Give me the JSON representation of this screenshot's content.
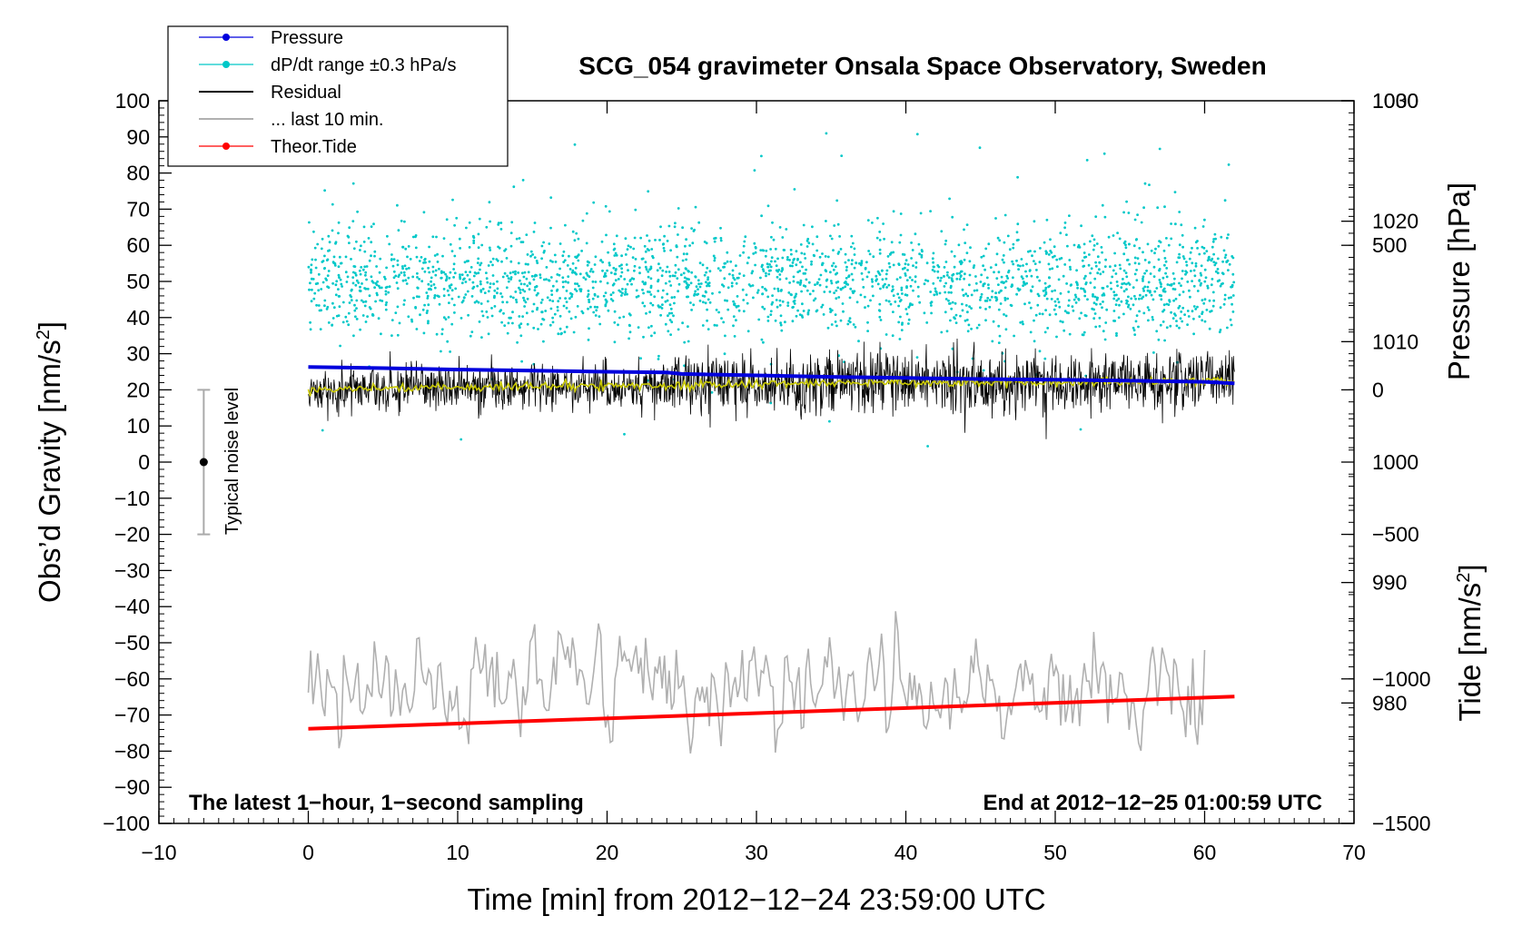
{
  "chart_data": {
    "type": "line",
    "title": "SCG_054 gravimeter Onsala Space Observatory, Sweden",
    "xlabel": "Time [min] from 2012−12−24 23:59:00 UTC",
    "ylabel_left": "Obs’d Gravity [nm/s",
    "ylabel_left_sup": "2",
    "ylabel_left_end": "]",
    "ylabel_right_pressure": "Pressure [hPa]",
    "ylabel_right_tide": "Tide [nm/s",
    "ylabel_right_tide_sup": "2",
    "ylabel_right_tide_end": "]",
    "xlim": [
      -10,
      70
    ],
    "ylim_left": [
      -100,
      100
    ],
    "pressure_ylim": [
      970,
      1030
    ],
    "tide_ylim": [
      -1500,
      1000
    ],
    "x_ticks": [
      {
        "v": -10,
        "label": "−10"
      },
      {
        "v": 0,
        "label": "0"
      },
      {
        "v": 10,
        "label": "10"
      },
      {
        "v": 20,
        "label": "20"
      },
      {
        "v": 30,
        "label": "30"
      },
      {
        "v": 40,
        "label": "40"
      },
      {
        "v": 50,
        "label": "50"
      },
      {
        "v": 60,
        "label": "60"
      },
      {
        "v": 70,
        "label": "70"
      }
    ],
    "y_ticks_left": [
      {
        "v": 100,
        "label": "100"
      },
      {
        "v": 90,
        "label": "90"
      },
      {
        "v": 80,
        "label": "80"
      },
      {
        "v": 70,
        "label": "70"
      },
      {
        "v": 60,
        "label": "60"
      },
      {
        "v": 50,
        "label": "50"
      },
      {
        "v": 40,
        "label": "40"
      },
      {
        "v": 30,
        "label": "30"
      },
      {
        "v": 20,
        "label": "20"
      },
      {
        "v": 10,
        "label": "10"
      },
      {
        "v": 0,
        "label": "0"
      },
      {
        "v": -10,
        "label": "−10"
      },
      {
        "v": -20,
        "label": "−20"
      },
      {
        "v": -30,
        "label": "−30"
      },
      {
        "v": -40,
        "label": "−40"
      },
      {
        "v": -50,
        "label": "−50"
      },
      {
        "v": -60,
        "label": "−60"
      },
      {
        "v": -70,
        "label": "−70"
      },
      {
        "v": -80,
        "label": "−80"
      },
      {
        "v": -90,
        "label": "−90"
      },
      {
        "v": -100,
        "label": "−100"
      }
    ],
    "pressure_ticks": [
      {
        "v": 1030,
        "label": "1030"
      },
      {
        "v": 1020,
        "label": "1020"
      },
      {
        "v": 1010,
        "label": "1010"
      },
      {
        "v": 1000,
        "label": "1000"
      },
      {
        "v": 990,
        "label": "990"
      },
      {
        "v": 980,
        "label": "980"
      }
    ],
    "tide_ticks": [
      {
        "v": 1000,
        "label": "1000"
      },
      {
        "v": 500,
        "label": "500"
      },
      {
        "v": 0,
        "label": "0"
      },
      {
        "v": -500,
        "label": "−500"
      },
      {
        "v": -1000,
        "label": "−1000"
      },
      {
        "v": -1500,
        "label": "−1500"
      }
    ],
    "legend": [
      {
        "label": "Pressure",
        "color": "#0000dd",
        "marker": true
      },
      {
        "label": "dP/dt range ±0.3 hPa/s",
        "color": "#00c8c8",
        "marker": true
      },
      {
        "label": "Residual",
        "color": "#000000",
        "marker": false
      },
      {
        "label": "... last 10 min.",
        "color": "#b0b0b0",
        "marker": false
      },
      {
        "label": "Theor.Tide",
        "color": "#ff0000",
        "marker": true
      }
    ],
    "annotations": {
      "left": "The latest 1−hour, 1−second sampling",
      "right": "End at 2012−12−25 01:00:59 UTC"
    },
    "noise_bar": {
      "label": "Typical noise level",
      "x": -7,
      "center": 0,
      "low": -20,
      "high": 20
    },
    "series": [
      {
        "name": "Pressure",
        "color": "#0000dd",
        "axis": "left",
        "x": [
          0,
          5,
          10,
          15,
          20,
          24,
          25,
          30,
          35,
          40,
          45,
          50,
          55,
          60,
          62
        ],
        "values": [
          26.3,
          26.0,
          25.6,
          25.3,
          25.0,
          24.8,
          24.4,
          24.0,
          23.6,
          23.3,
          23.0,
          22.8,
          22.5,
          22.2,
          21.8
        ]
      },
      {
        "name": "Residual (smoothed)",
        "color": "#c8c800",
        "axis": "left",
        "x": [
          0,
          5,
          10,
          15,
          20,
          25,
          30,
          35,
          40,
          45,
          50,
          55,
          60,
          62
        ],
        "values": [
          20.0,
          20.5,
          20.8,
          21.0,
          21.0,
          21.3,
          21.6,
          21.8,
          22.0,
          22.0,
          22.0,
          22.2,
          22.5,
          22.5
        ]
      },
      {
        "name": "Residual",
        "color": "#000000",
        "axis": "left",
        "x_range": [
          0,
          62
        ],
        "mean": 21.5,
        "spread": 10
      },
      {
        "name": "dP/dt range",
        "color": "#00c8c8",
        "axis": "left",
        "x_range": [
          0,
          62
        ],
        "mean": 50,
        "spread": 8
      },
      {
        "name": "... last 10 min.",
        "color": "#b0b0b0",
        "axis": "left",
        "x_range": [
          0,
          60
        ],
        "mean": -63,
        "spread": 8
      },
      {
        "name": "Theor.Tide",
        "color": "#ff0000",
        "axis": "left",
        "x": [
          0,
          62
        ],
        "values": [
          -73.8,
          -64.9
        ]
      }
    ]
  }
}
